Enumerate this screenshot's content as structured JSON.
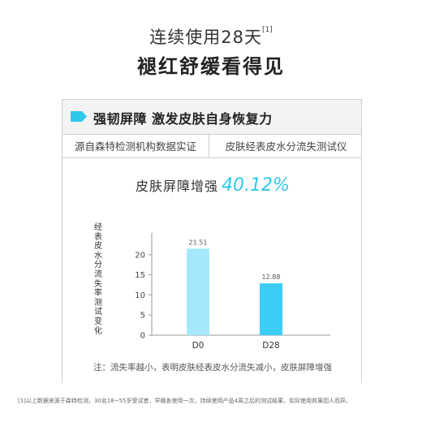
{
  "header": {
    "line1": "连续使用28天",
    "line1_ref": "[1]",
    "line2": "褪红舒缓看得见"
  },
  "card": {
    "title": "强韧屏障 激发皮肤自身恢复力",
    "pills": [
      "源自森特检测机构数据实证",
      "皮肤经表皮水分流失测试仪"
    ],
    "headline": "皮肤屏障增强",
    "headline_pct": "40.12%",
    "note": "注：流失率越小，表明皮肤经表皮水分流失减小，皮肤屏障增强"
  },
  "chart_data": {
    "type": "bar",
    "categories": [
      "D0",
      "D28"
    ],
    "values": [
      21.51,
      12.88
    ],
    "value_labels": [
      "21.51",
      "12.88"
    ],
    "ylabel": "经表皮水分流失率测试变化",
    "ylim": [
      0,
      25
    ],
    "yticks": [
      0,
      5,
      10,
      15,
      20
    ],
    "grid": false,
    "colors": [
      "#a6e8fb",
      "#3dcef6"
    ]
  },
  "footnote": "[1]以上数据来源于森特检测，30名18~55岁受试者，早晚各使用一次，持续使用产品4周之后的测试结果，实际使用效果因人而异。"
}
